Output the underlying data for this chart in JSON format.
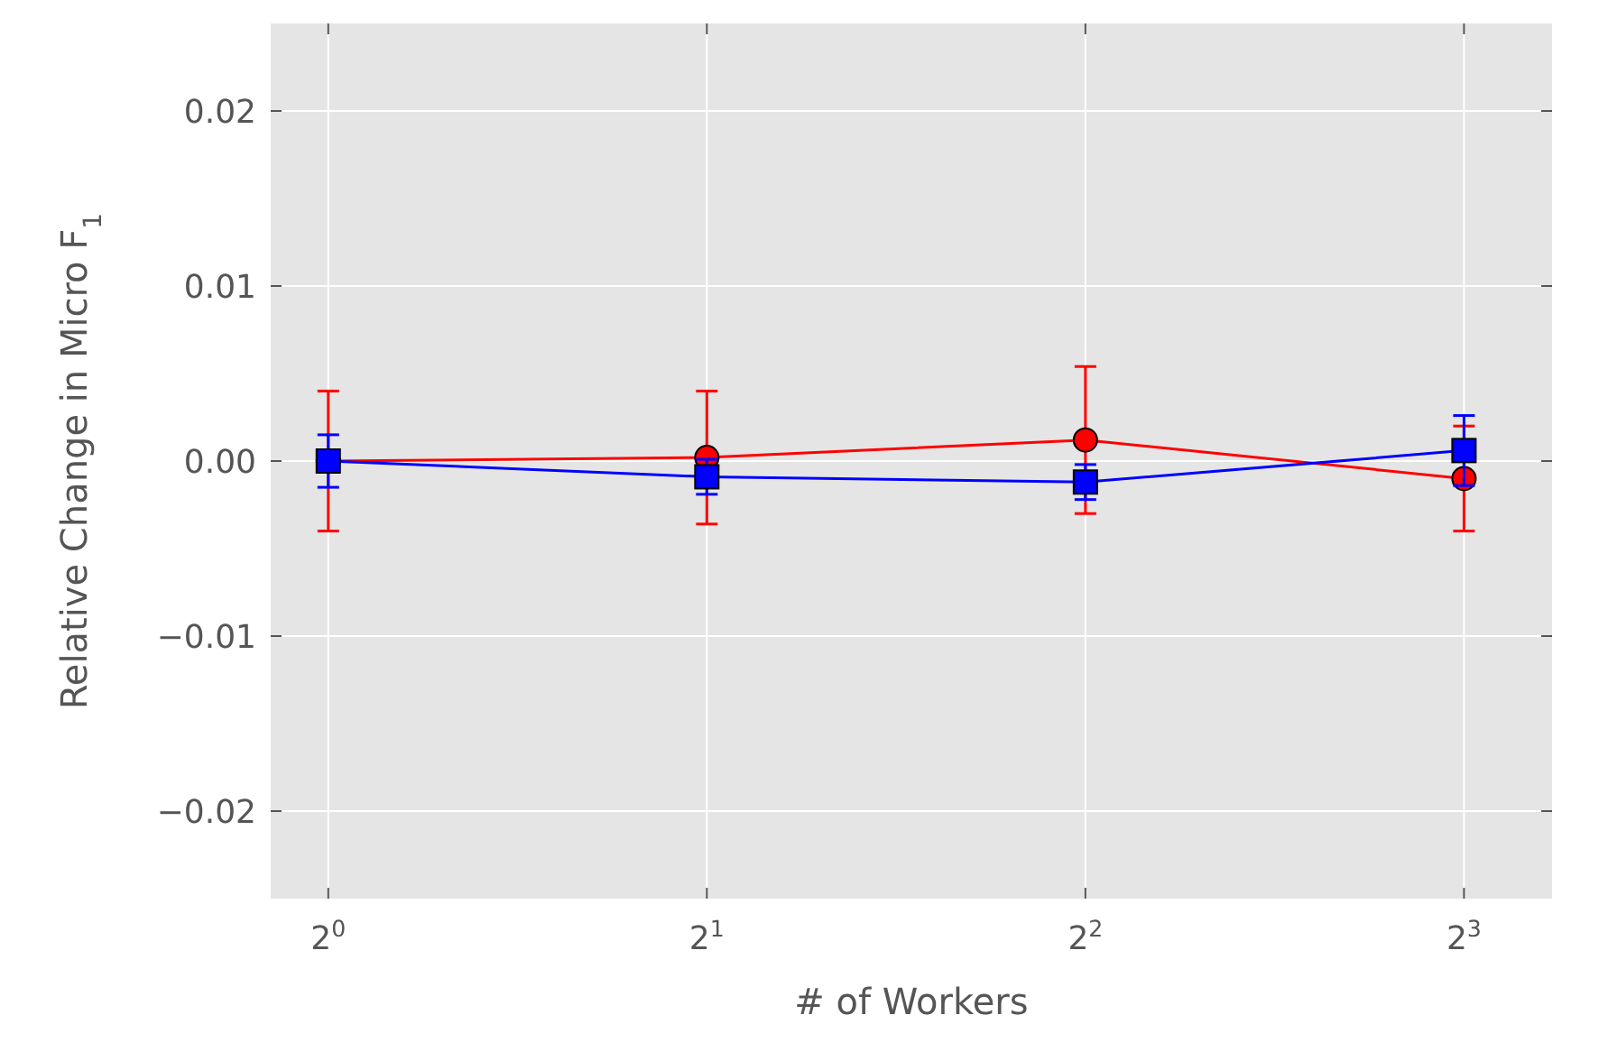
{
  "chart_data": {
    "type": "line",
    "xlabel": "# of Workers",
    "ylabel": "Relative Change in Micro F$_{1}$",
    "log": "x",
    "xlim": [
      0.9,
      9.4
    ],
    "ylim": [
      -0.025,
      0.025
    ],
    "xticks": [
      {
        "value": 1,
        "label": "2$^{0}$"
      },
      {
        "value": 2,
        "label": "2$^{1}$"
      },
      {
        "value": 4,
        "label": "2$^{2}$"
      },
      {
        "value": 8,
        "label": "2$^{3}$"
      }
    ],
    "yticks": [
      {
        "value": -0.02,
        "label": "−0.02"
      },
      {
        "value": -0.01,
        "label": "−0.01"
      },
      {
        "value": 0,
        "label": "0.00"
      },
      0.01,
      0.02
    ],
    "x": [
      1,
      2,
      4,
      8
    ],
    "grid": true,
    "series": [
      {
        "color": "#ff0000",
        "marker": "circle",
        "values": [
          0.0,
          0.0002,
          0.0012,
          -0.001
        ],
        "errors": [
          0.004,
          0.0038,
          0.0042,
          0.003
        ]
      },
      {
        "color": "#0000ff",
        "marker": "square",
        "values": [
          0.0,
          -0.0009,
          -0.0012,
          0.0006
        ],
        "errors": [
          0.0015,
          0.001,
          0.001,
          0.002
        ]
      }
    ]
  }
}
